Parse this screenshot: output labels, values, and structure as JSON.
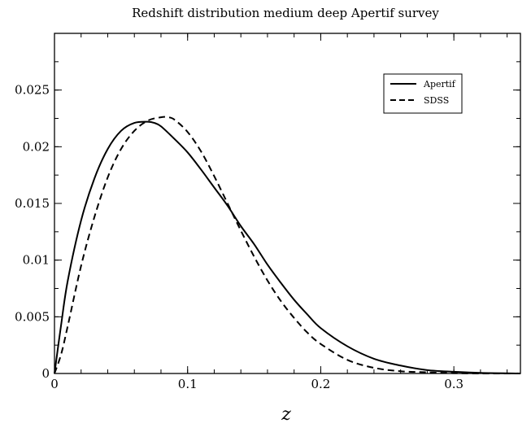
{
  "chart_data": {
    "type": "line",
    "title": "Redshift distribution medium deep Apertif survey",
    "xlabel": "z",
    "ylabel": "",
    "xlim": [
      0,
      0.35
    ],
    "ylim": [
      0,
      0.03
    ],
    "x_ticks": [
      0,
      0.1,
      0.2,
      0.3
    ],
    "x_tick_labels": [
      "0",
      "0.1",
      "0.2",
      "0.3"
    ],
    "y_ticks": [
      0,
      0.005,
      0.01,
      0.015,
      0.02,
      0.025
    ],
    "y_tick_labels": [
      "0",
      "0.005",
      "0.01",
      "0.015",
      "0.02",
      "0.025"
    ],
    "grid": false,
    "legend_position": "top-right",
    "series": [
      {
        "name": "Apertif",
        "line_style": "solid",
        "color": "#000000",
        "x": [
          0,
          0.005,
          0.01,
          0.02,
          0.03,
          0.04,
          0.05,
          0.06,
          0.07,
          0.075,
          0.08,
          0.09,
          0.1,
          0.11,
          0.12,
          0.13,
          0.14,
          0.15,
          0.16,
          0.17,
          0.18,
          0.19,
          0.2,
          0.22,
          0.24,
          0.26,
          0.28,
          0.3,
          0.32,
          0.35
        ],
        "y": [
          0,
          0.0043,
          0.0082,
          0.0135,
          0.0172,
          0.0198,
          0.0214,
          0.0221,
          0.0222,
          0.0221,
          0.0218,
          0.0207,
          0.0195,
          0.018,
          0.0164,
          0.0148,
          0.013,
          0.0114,
          0.0096,
          0.008,
          0.0065,
          0.0052,
          0.004,
          0.0024,
          0.0013,
          0.0007,
          0.0003,
          0.00015,
          5e-05,
          0
        ]
      },
      {
        "name": "SDSS",
        "line_style": "dashed",
        "color": "#000000",
        "x": [
          0,
          0.005,
          0.01,
          0.02,
          0.03,
          0.04,
          0.05,
          0.06,
          0.07,
          0.08,
          0.085,
          0.09,
          0.1,
          0.11,
          0.12,
          0.13,
          0.14,
          0.15,
          0.16,
          0.17,
          0.18,
          0.19,
          0.2,
          0.22,
          0.24,
          0.26,
          0.28,
          0.3,
          0.32,
          0.35
        ],
        "y": [
          0,
          0.0017,
          0.0042,
          0.0095,
          0.0138,
          0.0173,
          0.0198,
          0.0214,
          0.0223,
          0.0226,
          0.0226,
          0.0224,
          0.0213,
          0.0196,
          0.0174,
          0.015,
          0.0126,
          0.0103,
          0.0082,
          0.0064,
          0.0049,
          0.0036,
          0.0026,
          0.0012,
          0.0005,
          0.0002,
          0.0001,
          3e-05,
          0,
          0
        ]
      }
    ]
  }
}
